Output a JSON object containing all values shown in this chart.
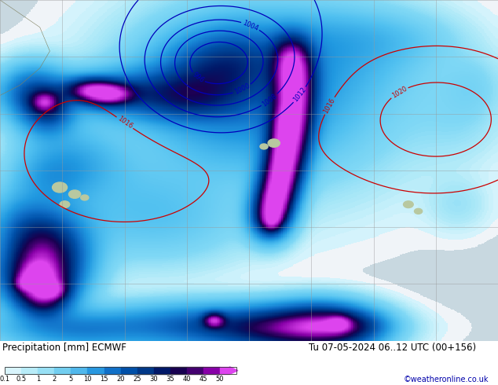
{
  "title": "Precipitation [mm] ECMWF",
  "date_text": "Tu 07-05-2024 06..12 UTC (00+156)",
  "credit": "©weatheronline.co.uk",
  "colorbar_levels": [
    0.1,
    0.5,
    1,
    2,
    5,
    10,
    15,
    20,
    25,
    30,
    35,
    40,
    45,
    50
  ],
  "colorbar_colors": [
    "#c8f0f8",
    "#b0e8f8",
    "#90daf8",
    "#70caf5",
    "#50b8f0",
    "#309fe8",
    "#1080d8",
    "#0060c0",
    "#0040a0",
    "#002080",
    "#1a0060",
    "#500090",
    "#9900bb",
    "#dd44ee"
  ],
  "bg_ocean": "#c8d8e0",
  "bg_land": "#b8c8a0",
  "fig_bg": "#ffffff",
  "label_color": "#000000",
  "contour_blue": "#0000bb",
  "contour_red": "#cc0000",
  "grid_color": "#999999",
  "font_size_title": 9,
  "font_size_credit": 7
}
